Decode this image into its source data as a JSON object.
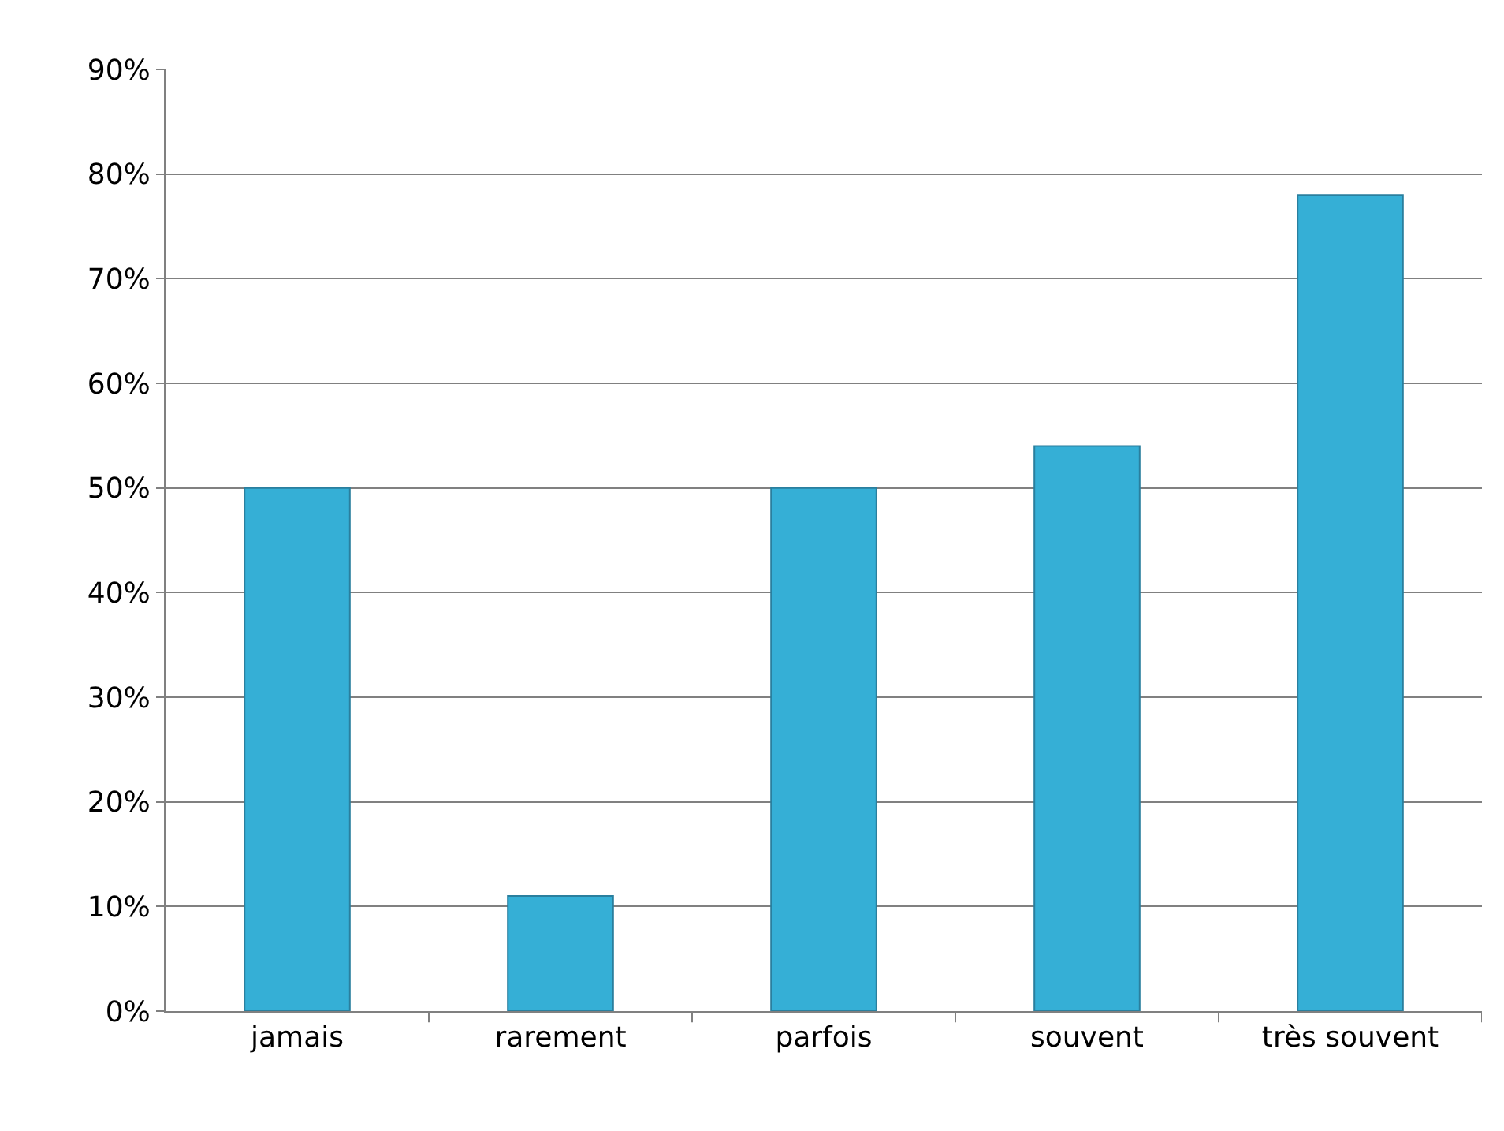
{
  "chart_data": {
    "type": "bar",
    "categories": [
      "jamais",
      "rarement",
      "parfois",
      "souvent",
      "très souvent"
    ],
    "values": [
      50,
      11,
      50,
      54,
      78
    ],
    "color": "#35afd6",
    "ylim": [
      0,
      90
    ],
    "yticks": [
      {
        "value": 0,
        "label": "0%"
      },
      {
        "value": 10,
        "label": "10%"
      },
      {
        "value": 20,
        "label": "20%"
      },
      {
        "value": 30,
        "label": "30%"
      },
      {
        "value": 40,
        "label": "40%"
      },
      {
        "value": 50,
        "label": "50%"
      },
      {
        "value": 60,
        "label": "60%"
      },
      {
        "value": 70,
        "label": "70%"
      },
      {
        "value": 80,
        "label": "80%"
      },
      {
        "value": 90,
        "label": "90%"
      }
    ],
    "grid": "y",
    "legend": false
  }
}
